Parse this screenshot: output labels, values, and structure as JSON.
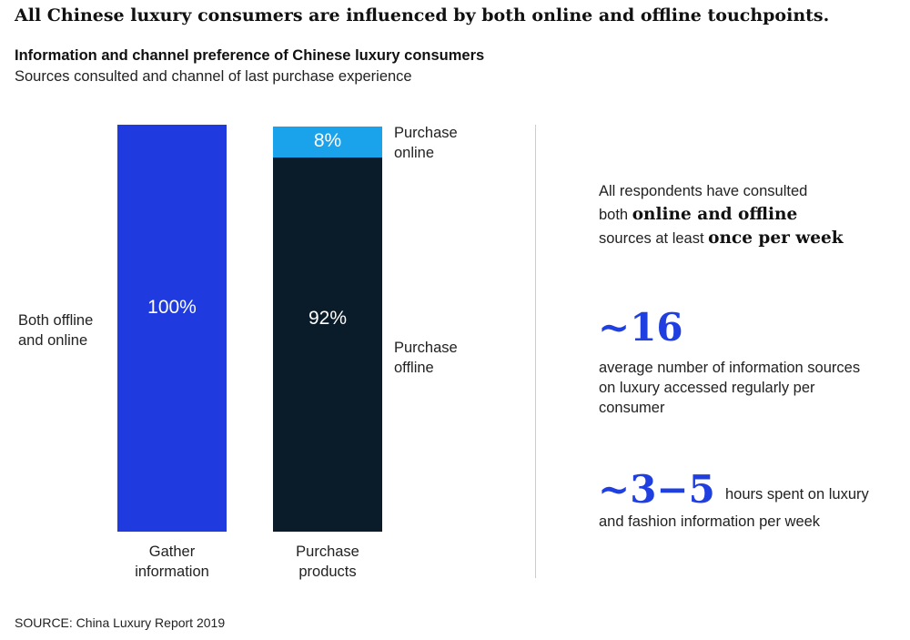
{
  "title": "All Chinese luxury consumers are influenced by both online and offline touchpoints.",
  "chart_data": {
    "type": "bar",
    "stacked": true,
    "title": "Information and channel preference of Chinese luxury consumers",
    "subtitle": "Sources consulted and channel of last purchase experience",
    "categories": [
      "Gather information",
      "Purchase products"
    ],
    "series": [
      {
        "name": "Both offline and online",
        "category": "Gather information",
        "value": 100,
        "label": "100%",
        "color": "#1f3be0"
      },
      {
        "name": "Purchase offline",
        "category": "Purchase products",
        "value": 92,
        "label": "92%",
        "color": "#0a1b2a"
      },
      {
        "name": "Purchase online",
        "category": "Purchase products",
        "value": 8,
        "label": "8%",
        "color": "#1aa3ea"
      }
    ],
    "ylim": [
      0,
      100
    ]
  },
  "labels": {
    "both": "Both offline and online",
    "online": "Purchase online",
    "offline": "Purchase offline",
    "cat1": "Gather information",
    "cat2": "Purchase products"
  },
  "facts": {
    "f1_a": "All respondents have consulted",
    "f1_b": "both ",
    "f1_c": "online and offline",
    "f1_d": "sources at least ",
    "f1_e": "once per week",
    "f2_num": "~16",
    "f2_text": "average number of information sources on luxury accessed regularly per consumer",
    "f3_num": "~3−5",
    "f3_text1": "hours spent on luxury",
    "f3_text2": "and fashion information per week"
  },
  "source": "SOURCE: China Luxury Report 2019"
}
